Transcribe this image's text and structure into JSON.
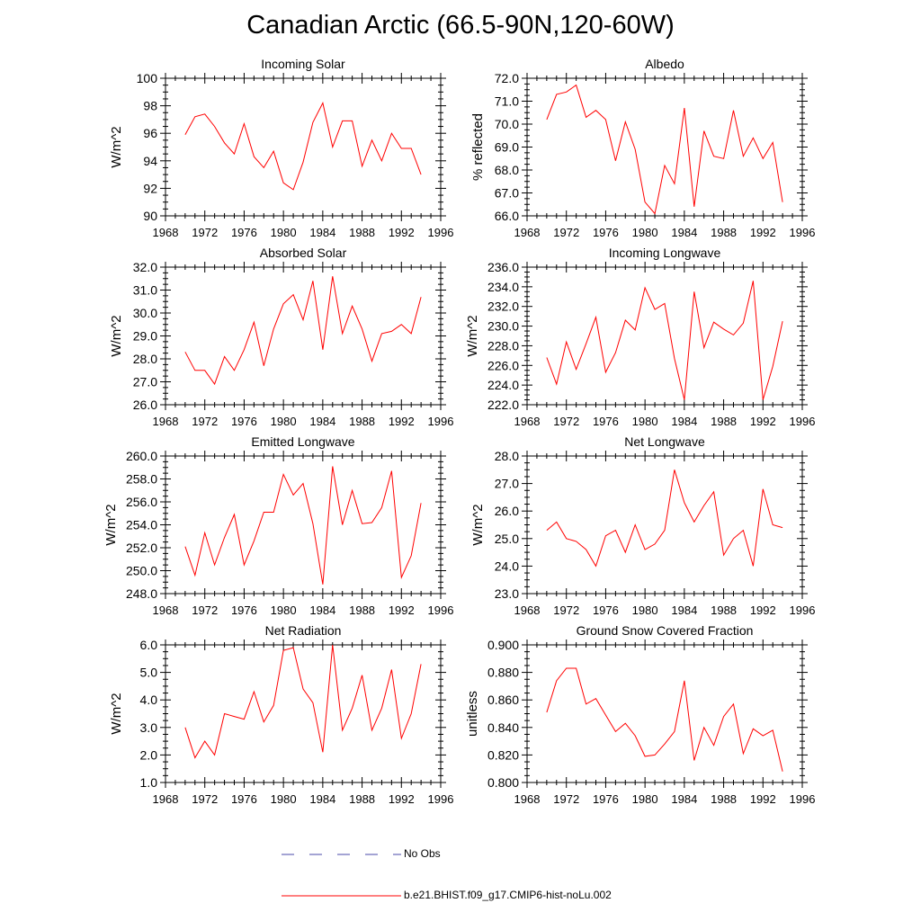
{
  "title": "Canadian Arctic (66.5-90N,120-60W)",
  "colors": {
    "series": "#ff0000",
    "obs": "#4a4aa8",
    "axis": "#000000"
  },
  "legend": {
    "obs_label": "No Obs",
    "model_label": "b.e21.BHIST.f09_g17.CMIP6-hist-noLu.002"
  },
  "chart_data": [
    {
      "type": "line",
      "title": "Incoming Solar",
      "xlabel": "",
      "ylabel": "W/m^2",
      "ylim": [
        90,
        100
      ],
      "xlim": [
        1968,
        1996
      ],
      "yticks": [
        "90",
        "92",
        "94",
        "96",
        "98",
        "100"
      ],
      "xticks": [
        "1968",
        "1972",
        "1976",
        "1980",
        "1984",
        "1988",
        "1992",
        "1996"
      ],
      "x": [
        1970,
        1971,
        1972,
        1973,
        1974,
        1975,
        1976,
        1977,
        1978,
        1979,
        1980,
        1981,
        1982,
        1983,
        1984,
        1985,
        1986,
        1987,
        1988,
        1989,
        1990,
        1991,
        1992,
        1993,
        1994
      ],
      "series": [
        {
          "name": "b.e21.BHIST.f09_g17.CMIP6-hist-noLu.002",
          "values": [
            95.9,
            97.2,
            97.4,
            96.5,
            95.3,
            94.5,
            96.7,
            94.3,
            93.5,
            94.7,
            92.4,
            91.9,
            93.9,
            96.8,
            98.2,
            95.0,
            96.9,
            96.9,
            93.6,
            95.5,
            94.0,
            96.0,
            94.9,
            94.9,
            93.0
          ]
        }
      ]
    },
    {
      "type": "line",
      "title": "Albedo",
      "xlabel": "",
      "ylabel": "% reflected",
      "ylim": [
        66,
        72
      ],
      "xlim": [
        1968,
        1996
      ],
      "yticks": [
        "66.0",
        "67.0",
        "68.0",
        "69.0",
        "70.0",
        "71.0",
        "72.0"
      ],
      "xticks": [
        "1968",
        "1972",
        "1976",
        "1980",
        "1984",
        "1988",
        "1992",
        "1996"
      ],
      "x": [
        1970,
        1971,
        1972,
        1973,
        1974,
        1975,
        1976,
        1977,
        1978,
        1979,
        1980,
        1981,
        1982,
        1983,
        1984,
        1985,
        1986,
        1987,
        1988,
        1989,
        1990,
        1991,
        1992,
        1993,
        1994
      ],
      "series": [
        {
          "name": "b.e21.BHIST.f09_g17.CMIP6-hist-noLu.002",
          "values": [
            70.2,
            71.3,
            71.4,
            71.7,
            70.3,
            70.6,
            70.2,
            68.4,
            70.1,
            68.9,
            66.6,
            66.1,
            68.2,
            67.4,
            70.7,
            66.4,
            69.7,
            68.6,
            68.5,
            70.6,
            68.6,
            69.4,
            68.5,
            69.2,
            66.6
          ]
        }
      ]
    },
    {
      "type": "line",
      "title": "Absorbed Solar",
      "xlabel": "",
      "ylabel": "W/m^2",
      "ylim": [
        26,
        32
      ],
      "xlim": [
        1968,
        1996
      ],
      "yticks": [
        "26.0",
        "27.0",
        "28.0",
        "29.0",
        "30.0",
        "31.0",
        "32.0"
      ],
      "xticks": [
        "1968",
        "1972",
        "1976",
        "1980",
        "1984",
        "1988",
        "1992",
        "1996"
      ],
      "x": [
        1970,
        1971,
        1972,
        1973,
        1974,
        1975,
        1976,
        1977,
        1978,
        1979,
        1980,
        1981,
        1982,
        1983,
        1984,
        1985,
        1986,
        1987,
        1988,
        1989,
        1990,
        1991,
        1992,
        1993,
        1994
      ],
      "series": [
        {
          "name": "b.e21.BHIST.f09_g17.CMIP6-hist-noLu.002",
          "values": [
            28.3,
            27.5,
            27.5,
            26.9,
            28.1,
            27.5,
            28.4,
            29.6,
            27.7,
            29.3,
            30.4,
            30.8,
            29.7,
            31.4,
            28.4,
            31.6,
            29.1,
            30.3,
            29.3,
            27.9,
            29.1,
            29.2,
            29.5,
            29.1,
            30.7
          ]
        }
      ]
    },
    {
      "type": "line",
      "title": "Incoming Longwave",
      "xlabel": "",
      "ylabel": "W/m^2",
      "ylim": [
        222,
        236
      ],
      "xlim": [
        1968,
        1996
      ],
      "yticks": [
        "222.0",
        "224.0",
        "226.0",
        "228.0",
        "230.0",
        "232.0",
        "234.0",
        "236.0"
      ],
      "xticks": [
        "1968",
        "1972",
        "1976",
        "1980",
        "1984",
        "1988",
        "1992",
        "1996"
      ],
      "x": [
        1970,
        1971,
        1972,
        1973,
        1974,
        1975,
        1976,
        1977,
        1978,
        1979,
        1980,
        1981,
        1982,
        1983,
        1984,
        1985,
        1986,
        1987,
        1988,
        1989,
        1990,
        1991,
        1992,
        1993,
        1994
      ],
      "series": [
        {
          "name": "b.e21.BHIST.f09_g17.CMIP6-hist-noLu.002",
          "values": [
            226.8,
            224.1,
            228.4,
            225.6,
            228.2,
            230.9,
            225.3,
            227.3,
            230.6,
            229.6,
            233.9,
            231.7,
            232.3,
            226.7,
            222.5,
            233.5,
            227.8,
            230.4,
            229.7,
            229.1,
            230.3,
            234.6,
            222.5,
            225.9,
            230.5
          ]
        }
      ]
    },
    {
      "type": "line",
      "title": "Emitted Longwave",
      "xlabel": "",
      "ylabel": "W/m^2",
      "ylim": [
        248,
        260
      ],
      "xlim": [
        1968,
        1996
      ],
      "yticks": [
        "248.0",
        "250.0",
        "252.0",
        "254.0",
        "256.0",
        "258.0",
        "260.0"
      ],
      "xticks": [
        "1968",
        "1972",
        "1976",
        "1980",
        "1984",
        "1988",
        "1992",
        "1996"
      ],
      "x": [
        1970,
        1971,
        1972,
        1973,
        1974,
        1975,
        1976,
        1977,
        1978,
        1979,
        1980,
        1981,
        1982,
        1983,
        1984,
        1985,
        1986,
        1987,
        1988,
        1989,
        1990,
        1991,
        1992,
        1993,
        1994
      ],
      "series": [
        {
          "name": "b.e21.BHIST.f09_g17.CMIP6-hist-noLu.002",
          "values": [
            252.1,
            249.6,
            253.3,
            250.5,
            252.9,
            254.9,
            250.5,
            252.6,
            255.1,
            255.1,
            258.4,
            256.6,
            257.6,
            254.1,
            248.8,
            259.1,
            254.0,
            257.0,
            254.1,
            254.2,
            255.5,
            258.7,
            249.4,
            251.3,
            255.9
          ]
        }
      ]
    },
    {
      "type": "line",
      "title": "Net Longwave",
      "xlabel": "",
      "ylabel": "W/m^2",
      "ylim": [
        23,
        28
      ],
      "xlim": [
        1968,
        1996
      ],
      "yticks": [
        "23.0",
        "24.0",
        "25.0",
        "26.0",
        "27.0",
        "28.0"
      ],
      "xticks": [
        "1968",
        "1972",
        "1976",
        "1980",
        "1984",
        "1988",
        "1992",
        "1996"
      ],
      "x": [
        1970,
        1971,
        1972,
        1973,
        1974,
        1975,
        1976,
        1977,
        1978,
        1979,
        1980,
        1981,
        1982,
        1983,
        1984,
        1985,
        1986,
        1987,
        1988,
        1989,
        1990,
        1991,
        1992,
        1993,
        1994
      ],
      "series": [
        {
          "name": "b.e21.BHIST.f09_g17.CMIP6-hist-noLu.002",
          "values": [
            25.3,
            25.6,
            25.0,
            24.9,
            24.6,
            24.0,
            25.1,
            25.3,
            24.5,
            25.5,
            24.6,
            24.8,
            25.3,
            27.5,
            26.3,
            25.6,
            26.2,
            26.7,
            24.4,
            25.0,
            25.3,
            24.0,
            26.8,
            25.5,
            25.4
          ]
        }
      ]
    },
    {
      "type": "line",
      "title": "Net Radiation",
      "xlabel": "",
      "ylabel": "W/m^2",
      "ylim": [
        1,
        6
      ],
      "xlim": [
        1968,
        1996
      ],
      "yticks": [
        "1.0",
        "2.0",
        "3.0",
        "4.0",
        "5.0",
        "6.0"
      ],
      "xticks": [
        "1968",
        "1972",
        "1976",
        "1980",
        "1984",
        "1988",
        "1992",
        "1996"
      ],
      "x": [
        1970,
        1971,
        1972,
        1973,
        1974,
        1975,
        1976,
        1977,
        1978,
        1979,
        1980,
        1981,
        1982,
        1983,
        1984,
        1985,
        1986,
        1987,
        1988,
        1989,
        1990,
        1991,
        1992,
        1993,
        1994
      ],
      "series": [
        {
          "name": "b.e21.BHIST.f09_g17.CMIP6-hist-noLu.002",
          "values": [
            3.0,
            1.9,
            2.5,
            2.0,
            3.5,
            3.4,
            3.3,
            4.3,
            3.2,
            3.8,
            5.8,
            5.9,
            4.4,
            3.9,
            2.1,
            6.0,
            2.9,
            3.7,
            4.9,
            2.9,
            3.7,
            5.1,
            2.6,
            3.5,
            5.3
          ]
        }
      ]
    },
    {
      "type": "line",
      "title": "Ground Snow Covered Fraction",
      "xlabel": "",
      "ylabel": "unitless",
      "ylim": [
        0.8,
        0.9
      ],
      "xlim": [
        1968,
        1996
      ],
      "yticks": [
        "0.800",
        "0.820",
        "0.840",
        "0.860",
        "0.880",
        "0.900"
      ],
      "xticks": [
        "1968",
        "1972",
        "1976",
        "1980",
        "1984",
        "1988",
        "1992",
        "1996"
      ],
      "x": [
        1970,
        1971,
        1972,
        1973,
        1974,
        1975,
        1976,
        1977,
        1978,
        1979,
        1980,
        1981,
        1982,
        1983,
        1984,
        1985,
        1986,
        1987,
        1988,
        1989,
        1990,
        1991,
        1992,
        1993,
        1994
      ],
      "series": [
        {
          "name": "b.e21.BHIST.f09_g17.CMIP6-hist-noLu.002",
          "values": [
            0.851,
            0.874,
            0.883,
            0.883,
            0.857,
            0.861,
            0.849,
            0.837,
            0.843,
            0.834,
            0.819,
            0.82,
            0.828,
            0.837,
            0.874,
            0.816,
            0.84,
            0.827,
            0.848,
            0.857,
            0.821,
            0.839,
            0.834,
            0.838,
            0.808
          ]
        }
      ]
    }
  ]
}
